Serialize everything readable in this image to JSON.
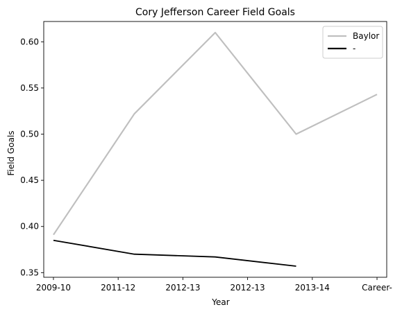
{
  "chart_data": {
    "type": "line",
    "title": "Cory Jefferson Career Field Goals",
    "xlabel": "Year",
    "ylabel": "Field Goals",
    "x_ticks": [
      "2009-10",
      "2011-12",
      "2012-13",
      "2012-13",
      "2013-14",
      "Career-"
    ],
    "y_ticks": [
      "0.35",
      "0.40",
      "0.45",
      "0.50",
      "0.55",
      "0.60"
    ],
    "ylim": [
      0.345,
      0.622
    ],
    "xlim": [
      -0.15,
      5.15
    ],
    "grid": false,
    "legend_position": "top-right",
    "series": [
      {
        "name": "Baylor",
        "color": "#bfbfbf",
        "x": [
          0,
          1.25,
          2.5,
          3.75,
          5.0
        ],
        "values": [
          0.391,
          0.522,
          0.61,
          0.5,
          0.543
        ]
      },
      {
        "name": "-",
        "color": "#000000",
        "x": [
          0,
          1.25,
          2.5,
          3.75
        ],
        "values": [
          0.385,
          0.37,
          0.367,
          0.357
        ]
      }
    ]
  }
}
